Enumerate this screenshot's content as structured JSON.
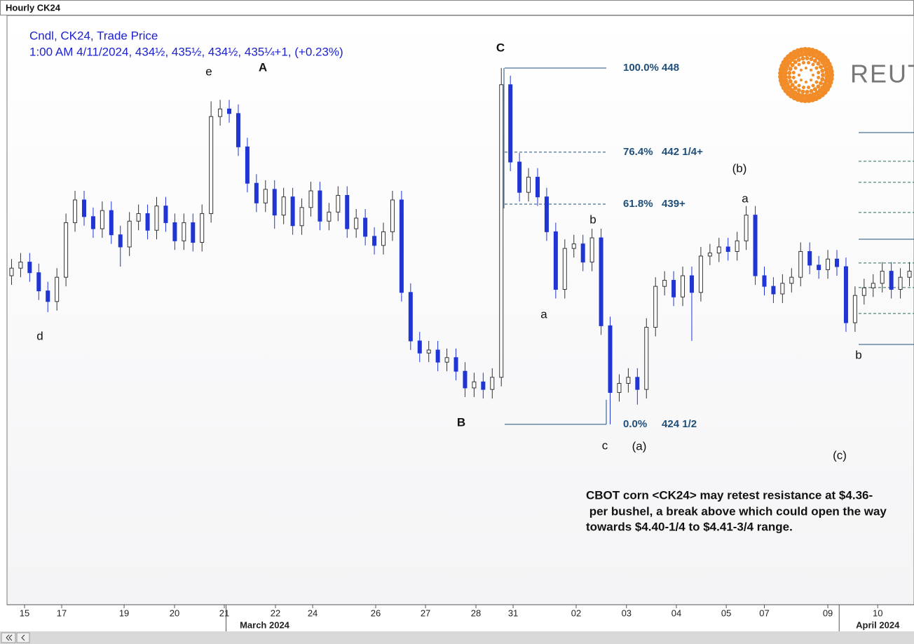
{
  "chart_data": {
    "type": "candlestick",
    "window_title": "Hourly CK24",
    "legend_lines": [
      "Cndl, CK24, Trade Price",
      "1:00 AM 4/11/2024, 434½, 435½, 434½, 435¼+1, (+0.23%)"
    ],
    "ylim": [
      412.6,
      451.47
    ],
    "xlim": [
      0,
      100
    ],
    "xticks": [
      {
        "value": 1.93,
        "label": "15"
      },
      {
        "value": 6.03,
        "label": "17"
      },
      {
        "value": 12.91,
        "label": "19"
      },
      {
        "value": 18.47,
        "label": "20"
      },
      {
        "value": 23.96,
        "label": "21"
      },
      {
        "value": 29.6,
        "label": "22"
      },
      {
        "value": 33.7,
        "label": "24"
      },
      {
        "value": 40.65,
        "label": "26"
      },
      {
        "value": 46.14,
        "label": "27"
      },
      {
        "value": 51.7,
        "label": "28"
      },
      {
        "value": 55.8,
        "label": "31"
      },
      {
        "value": 62.75,
        "label": "02"
      },
      {
        "value": 68.3,
        "label": "03"
      },
      {
        "value": 73.8,
        "label": "04"
      },
      {
        "value": 79.3,
        "label": "05"
      },
      {
        "value": 83.5,
        "label": "07"
      },
      {
        "value": 90.5,
        "label": "09"
      },
      {
        "value": 96.0,
        "label": "10"
      }
    ],
    "month_ticks": [
      {
        "value": 28.4,
        "label": "March 2024"
      },
      {
        "value": 96.0,
        "label": "April 2024"
      }
    ],
    "up_color": "#ffffff",
    "down_color": "#1f35d6",
    "open": [
      434.3,
      434.8,
      435.2,
      434.5,
      433.3,
      432.6,
      434.2,
      437.8,
      439.3,
      438.2,
      437.4,
      438.6,
      437.0,
      436.2,
      437.9,
      438.4,
      437.3,
      438.9,
      437.8,
      436.6,
      437.8,
      436.5,
      438.4,
      444.8,
      445.3,
      445.0,
      442.8,
      440.4,
      439.1,
      440.0,
      438.3,
      439.5,
      437.6,
      438.8,
      439.9,
      437.9,
      438.5,
      439.6,
      437.4,
      438.1,
      436.9,
      436.3,
      437.2,
      439.3,
      433.2,
      430.0,
      429.2,
      429.4,
      428.6,
      428.9,
      428.0,
      426.9,
      427.3,
      426.8,
      427.6,
      446.9,
      441.8,
      439.8,
      440.8,
      439.5,
      437.2,
      433.4,
      436.1,
      436.4,
      435.2,
      436.8,
      431.0,
      426.6,
      427.2,
      427.6,
      426.8,
      430.9,
      433.6,
      434.0,
      432.9,
      434.3,
      433.2,
      435.6,
      435.8,
      436.2,
      435.9,
      436.6,
      438.3,
      434.3,
      433.6,
      433.1,
      433.8,
      434.2,
      435.9,
      435.0,
      434.7,
      435.4,
      434.9,
      431.2,
      433.0,
      433.5,
      433.8,
      434.6,
      433.4,
      434.2
    ],
    "high": [
      435.4,
      435.8,
      435.8,
      435.1,
      433.9,
      434.8,
      438.4,
      439.9,
      439.9,
      438.8,
      439.2,
      439.2,
      437.6,
      438.5,
      439.0,
      439.0,
      439.5,
      439.5,
      438.4,
      438.4,
      438.4,
      439.0,
      445.8,
      445.9,
      445.9,
      445.6,
      443.4,
      441.0,
      440.6,
      440.6,
      440.1,
      440.1,
      439.4,
      440.5,
      440.5,
      439.1,
      440.2,
      440.2,
      438.7,
      438.7,
      437.5,
      437.8,
      439.9,
      439.9,
      433.8,
      430.6,
      430.0,
      430.0,
      429.5,
      429.5,
      428.6,
      427.9,
      427.9,
      428.2,
      448.0,
      447.5,
      442.4,
      441.4,
      441.4,
      440.1,
      437.8,
      436.7,
      437.0,
      437.0,
      437.4,
      437.4,
      431.6,
      427.8,
      428.2,
      428.2,
      431.5,
      434.2,
      434.6,
      434.6,
      434.9,
      434.9,
      436.2,
      436.4,
      436.8,
      436.8,
      437.2,
      438.9,
      438.9,
      434.9,
      434.2,
      434.4,
      434.8,
      436.5,
      436.5,
      435.6,
      436.0,
      436.0,
      435.5,
      433.6,
      434.1,
      434.4,
      435.2,
      435.2,
      434.8,
      435.2
    ],
    "low": [
      433.7,
      434.2,
      433.9,
      432.7,
      431.9,
      432.0,
      433.6,
      437.2,
      437.6,
      436.8,
      436.8,
      436.4,
      434.9,
      435.6,
      437.3,
      436.7,
      436.7,
      437.2,
      436.0,
      436.0,
      435.9,
      435.9,
      437.8,
      444.2,
      444.4,
      442.2,
      439.8,
      438.5,
      438.5,
      437.4,
      437.7,
      437.0,
      437.0,
      438.2,
      437.3,
      437.3,
      437.9,
      436.8,
      436.8,
      436.3,
      435.7,
      435.7,
      436.6,
      432.6,
      429.4,
      428.6,
      428.6,
      428.0,
      428.0,
      427.4,
      426.3,
      426.3,
      426.2,
      426.2,
      427.0,
      441.2,
      439.2,
      439.2,
      438.9,
      436.6,
      432.8,
      432.8,
      435.5,
      434.6,
      434.6,
      430.4,
      424.5,
      426.0,
      426.6,
      425.8,
      426.2,
      430.3,
      433.0,
      432.3,
      432.3,
      430.0,
      432.6,
      435.0,
      435.2,
      435.3,
      435.3,
      436.0,
      433.7,
      433.0,
      432.5,
      432.5,
      433.2,
      433.6,
      434.4,
      434.1,
      434.1,
      434.3,
      430.6,
      430.6,
      432.4,
      432.9,
      433.2,
      432.8,
      432.8,
      433.6
    ],
    "close": [
      434.8,
      435.2,
      434.5,
      433.3,
      432.6,
      434.2,
      437.8,
      439.3,
      438.2,
      437.4,
      438.6,
      437.0,
      436.2,
      437.9,
      438.4,
      437.3,
      438.9,
      437.8,
      436.6,
      437.8,
      436.5,
      438.4,
      444.8,
      445.3,
      445.0,
      442.8,
      440.4,
      439.1,
      440.0,
      438.3,
      439.5,
      437.6,
      438.8,
      439.9,
      437.9,
      438.5,
      439.6,
      437.4,
      438.1,
      436.9,
      436.3,
      437.2,
      439.3,
      433.2,
      430.0,
      429.2,
      429.4,
      428.6,
      428.9,
      428.0,
      426.9,
      427.3,
      426.8,
      427.6,
      446.9,
      441.8,
      439.8,
      440.8,
      439.5,
      437.2,
      433.4,
      436.1,
      436.4,
      435.2,
      436.8,
      431.0,
      426.6,
      427.2,
      427.6,
      426.8,
      430.9,
      433.6,
      434.0,
      432.9,
      434.3,
      433.2,
      435.6,
      435.8,
      436.2,
      435.9,
      436.6,
      438.3,
      434.3,
      433.6,
      433.1,
      433.8,
      434.2,
      435.9,
      435.0,
      434.7,
      435.4,
      434.9,
      431.2,
      433.0,
      433.5,
      433.8,
      434.6,
      433.4,
      434.2,
      434.6
    ],
    "fibonacci": {
      "high": 448,
      "low": 424.5,
      "color": "#1f4f7a",
      "levels": [
        {
          "ratio": 100.0,
          "label": "100.0% 448",
          "style": "solid"
        },
        {
          "ratio": 76.4,
          "label": "76.4%   442 1/4+",
          "style": "dashed"
        },
        {
          "ratio": 61.8,
          "label": "61.8%   439+",
          "style": "dashed"
        },
        {
          "ratio": 0.0,
          "label": "0.0%     424 1/2",
          "style": "solid"
        }
      ]
    },
    "right_levels": [
      {
        "value": 443.74,
        "style": "solid"
      },
      {
        "value": 441.85,
        "style": "dashed"
      },
      {
        "value": 440.46,
        "style": "dashed"
      },
      {
        "value": 438.47,
        "style": "dashed"
      },
      {
        "value": 436.71,
        "style": "solid"
      },
      {
        "value": 435.14,
        "style": "dashed"
      },
      {
        "value": 433.52,
        "style": "dashed"
      },
      {
        "value": 431.81,
        "style": "dashed"
      },
      {
        "value": 429.77,
        "style": "solid"
      }
    ],
    "annotations": [
      "d",
      "e",
      "A",
      "C",
      "B",
      "a",
      "b",
      "c",
      "(a)",
      "(b)",
      "a",
      "b",
      "(c)"
    ],
    "comment_lines": [
      "CBOT corn <CK24> may retest resistance at $4.36-",
      " per bushel, a break above which could open the way",
      "towards $4.40-1/4 to $4.41-3/4 range."
    ],
    "logo_text": "REUTERS"
  }
}
